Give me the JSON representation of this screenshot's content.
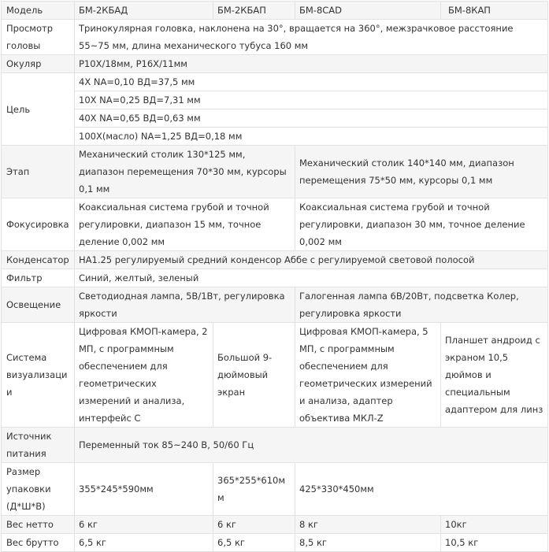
{
  "header": {
    "label": "Модель",
    "models": [
      "БМ-2КБАД",
      "БМ-2КБАП",
      "БМ-8CAD",
      "БМ-8КАП"
    ]
  },
  "rows": {
    "view": {
      "label": "Просмотр головы",
      "value": "Тринокулярная головка, наклонена на 30°, вращается на 360°, межзрачковое расстояние 55~75 мм, длина механического тубуса 160 мм"
    },
    "eyepiece": {
      "label": "Окуляр",
      "value": "P10X/18мм, P16X/11мм"
    },
    "objective": {
      "label": "Цель",
      "values": [
        "4X NA=0,10 ВД=37,5 мм",
        "10X NA=0,25 ВД=7,31 мм",
        "40X NA=0,65 ВД=0,63 мм",
        "100X(масло) NA=1,25 ВД=0,18 мм"
      ]
    },
    "stage": {
      "label": "Этап",
      "a": "Механический столик 130*125 мм, диапазон перемещения 70*30 мм, курсоры 0,1 мм",
      "b": "Механический столик 140*140 мм, диапазон перемещения 75*50 мм, курсоры 0,1 мм"
    },
    "focus": {
      "label": "Фокусировка",
      "a": "Коаксиальная система грубой и точной регулировки, диапазон 15 мм, точное деление 0,002 мм",
      "b": "Коаксиальная система грубой и точной регулировки, диапазон 30 мм, точное деление 0,002 мм"
    },
    "condenser": {
      "label": "Конденсатор",
      "value": "НА1.25 регулируемый средний конденсор Аббе с регулируемой световой полосой"
    },
    "filter": {
      "label": "Фильтр",
      "value": "Синий, желтый, зеленый"
    },
    "illumination": {
      "label": "Освещение",
      "a": "Светодиодная лампа, 5В/1Вт, регулировка яркости",
      "b": "Галогенная лампа 6В/20Вт, подсветка Колер, регулировка яркости"
    },
    "imaging": {
      "label": "Система визуализации",
      "values": [
        "Цифровая КМОП-камера, 2 МП, с программным обеспечением для геометрических измерений и анализа, интерфейс С",
        "Большой 9-дюймовый экран",
        "Цифровая КМОП-камера, 5 МП, с программным обеспечением для геометрических измерений и анализа, адаптер объектива МКЛ-Z",
        "Планшет андроид с экраном 10,5 дюймов и специальным адаптером для линз"
      ]
    },
    "power": {
      "label": "Источник питания",
      "value": "Переменный ток 85~240 В, 50/60 Гц"
    },
    "package": {
      "label": "Размер упаковки (Д*Ш*В)",
      "values": [
        "355*245*590мм",
        "365*255*610мм",
        "425*330*450мм"
      ]
    },
    "net": {
      "label": "Вес нетто",
      "values": [
        "6 кг",
        "6 кг",
        "8 кг",
        "10кг"
      ]
    },
    "gross": {
      "label": "Вес брутто",
      "values": [
        "6,5 кг",
        "6,5 кг",
        "8,5 кг",
        "10,5 кг"
      ]
    }
  }
}
